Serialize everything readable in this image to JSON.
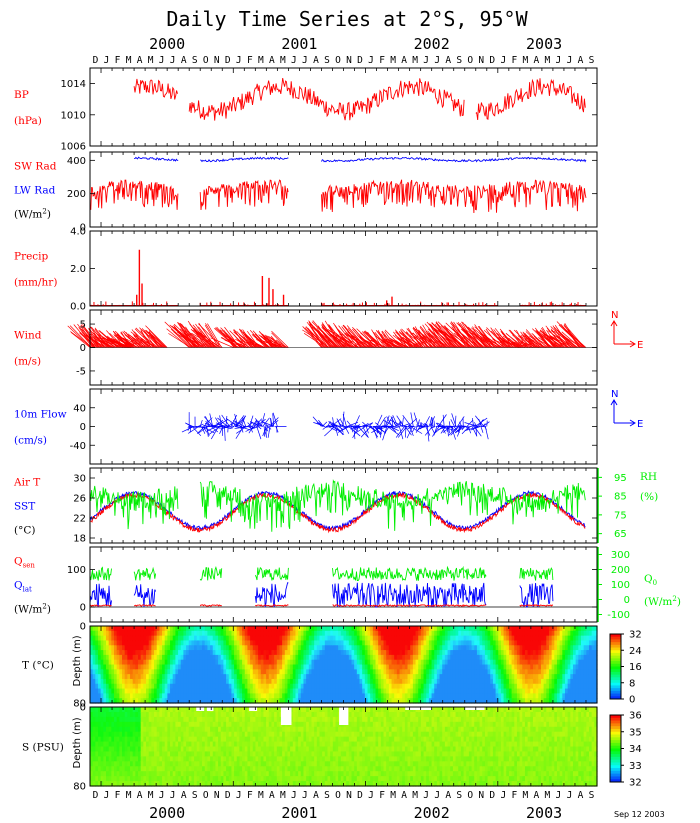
{
  "title": "Daily Time Series at 2°S, 95°W",
  "date_stamp": "Sep 12 2003",
  "month_letters": [
    "D",
    "J",
    "F",
    "M",
    "A",
    "M",
    "J",
    "J",
    "A",
    "S",
    "O",
    "N",
    "D",
    "J",
    "F",
    "M",
    "A",
    "M",
    "J",
    "J",
    "A",
    "S",
    "O",
    "N",
    "D",
    "J",
    "F",
    "M",
    "A",
    "M",
    "J",
    "J",
    "A",
    "S",
    "O",
    "N",
    "D",
    "J",
    "F",
    "M",
    "A",
    "M",
    "J",
    "J",
    "A",
    "S"
  ],
  "years": [
    "2000",
    "2001",
    "2002",
    "2003"
  ],
  "colors": {
    "red": "#ff0000",
    "blue": "#0000ff",
    "green": "#00ee00",
    "black": "#000000"
  },
  "chart_data": [
    {
      "type": "line",
      "id": "bp",
      "labels": [
        {
          "text": "BP",
          "color": "#ff0000"
        },
        {
          "text": "(hPa)",
          "color": "#ff0000"
        }
      ],
      "y_ticks": [
        "1014",
        "1010",
        "1006"
      ],
      "ylim": [
        1006,
        1016
      ],
      "series": [
        {
          "color": "#ff0000",
          "mean": 1012,
          "amp": 1.6,
          "noise": 1.2,
          "segments": [
            [
              "2000-04",
              "2000-07"
            ],
            [
              "2000-09",
              "2002-09"
            ],
            [
              "2002-11",
              "2003-08"
            ]
          ]
        }
      ]
    },
    {
      "type": "line",
      "id": "rad",
      "labels": [
        {
          "text": "SW Rad",
          "color": "#ff0000"
        },
        {
          "text": "LW Rad",
          "color": "#0000ff"
        },
        {
          "text": "(W/m2)",
          "color": "#000000"
        }
      ],
      "y_ticks": [
        "400",
        "200",
        "0"
      ],
      "ylim": [
        0,
        450
      ],
      "series": [
        {
          "name": "SW Rad",
          "color": "#ff0000",
          "mean": 250,
          "amp": 20,
          "noise": 55,
          "segments": [
            [
              "1999-12",
              "2000-07"
            ],
            [
              "2000-10",
              "2001-05"
            ],
            [
              "2001-09",
              "2003-08"
            ]
          ]
        },
        {
          "name": "LW Rad",
          "color": "#0000ff",
          "mean": 405,
          "amp": 8,
          "noise": 6,
          "segments": [
            [
              "2000-04",
              "2000-07"
            ],
            [
              "2000-10",
              "2001-05"
            ],
            [
              "2001-09",
              "2003-08"
            ]
          ]
        }
      ]
    },
    {
      "type": "bar",
      "id": "precip",
      "labels": [
        {
          "text": "Precip",
          "color": "#ff0000"
        },
        {
          "text": "(mm/hr)",
          "color": "#ff0000"
        }
      ],
      "y_ticks": [
        "4.0",
        "2.0",
        "0.0"
      ],
      "ylim": [
        0,
        4
      ],
      "series": [
        {
          "color": "#ff0000",
          "segments": [
            [
              "1999-12",
              "2000-07"
            ],
            [
              "2000-10",
              "2001-05"
            ],
            [
              "2001-09",
              "2002-12"
            ],
            [
              "2003-03",
              "2003-08"
            ]
          ],
          "peaks": [
            [
              2000.29,
              3.0
            ],
            [
              2000.31,
              1.2
            ],
            [
              2000.27,
              0.6
            ],
            [
              2001.22,
              1.6
            ],
            [
              2001.27,
              1.5
            ],
            [
              2001.3,
              0.9
            ],
            [
              2001.38,
              0.6
            ],
            [
              2002.2,
              0.5
            ],
            [
              2002.16,
              0.3
            ]
          ]
        }
      ]
    },
    {
      "type": "vector",
      "id": "wind",
      "labels": [
        {
          "text": "Wind",
          "color": "#ff0000"
        },
        {
          "text": "(m/s)",
          "color": "#ff0000"
        }
      ],
      "y_ticks": [
        "5",
        "0",
        "-5"
      ],
      "ylim": [
        -8,
        8
      ],
      "compass": [
        "N",
        "E"
      ],
      "series": [
        {
          "color": "#ff0000",
          "segments": [
            [
              "1999-12",
              "2000-03"
            ],
            [
              "2000-03",
              "2000-06"
            ],
            [
              "2000-09",
              "2000-11"
            ],
            [
              "2001-01",
              "2001-05"
            ],
            [
              "2001-09",
              "2003-02"
            ],
            [
              "2003-03",
              "2003-08"
            ]
          ]
        }
      ]
    },
    {
      "type": "vector",
      "id": "flow",
      "labels": [
        {
          "text": "10m Flow",
          "color": "#0000ff"
        },
        {
          "text": "(cm/s)",
          "color": "#0000ff"
        }
      ],
      "y_ticks": [
        "40",
        "0",
        "-40"
      ],
      "ylim": [
        -80,
        80
      ],
      "compass": [
        "N",
        "E"
      ],
      "series": [
        {
          "color": "#0000ff",
          "segments": [
            [
              "2000-09",
              "2001-04"
            ],
            [
              "2001-09",
              "2002-11"
            ]
          ]
        }
      ]
    },
    {
      "type": "line",
      "id": "temp",
      "labels": [
        {
          "text": "Air T",
          "color": "#ff0000"
        },
        {
          "text": "SST",
          "color": "#0000ff"
        },
        {
          "text": "(°C)",
          "color": "#000000"
        }
      ],
      "y_ticks": [
        "30",
        "26",
        "22",
        "18"
      ],
      "ylim": [
        17,
        32
      ],
      "right_ticks": [
        "95",
        "85",
        "75",
        "65"
      ],
      "right_labels": [
        {
          "text": "RH",
          "color": "#00ee00"
        },
        {
          "text": "(%)",
          "color": "#00ee00"
        }
      ],
      "series": [
        {
          "name": "Air T",
          "color": "#ff0000"
        },
        {
          "name": "SST",
          "color": "#0000ff"
        },
        {
          "name": "RH",
          "color": "#00ee00",
          "segments": [
            [
              "1999-12",
              "2000-07"
            ],
            [
              "2000-10",
              "2003-08"
            ]
          ]
        }
      ]
    },
    {
      "type": "line",
      "id": "flux",
      "labels": [
        {
          "text": "Qsen",
          "color": "#ff0000"
        },
        {
          "text": "Qlat",
          "color": "#0000ff"
        },
        {
          "text": "(W/m2)",
          "color": "#000000"
        }
      ],
      "y_ticks": [
        "100",
        "0"
      ],
      "ylim": [
        -40,
        160
      ],
      "right_ticks": [
        "300",
        "200",
        "100",
        "0",
        "-100"
      ],
      "right_labels": [
        {
          "text": "Q0",
          "color": "#00ee00"
        },
        {
          "text": "(W/m2)",
          "color": "#00ee00"
        }
      ],
      "series": [
        {
          "name": "Qsen",
          "color": "#ff0000",
          "segments": [
            [
              "1999-12",
              "2000-01"
            ],
            [
              "2000-04",
              "2000-05"
            ],
            [
              "2000-10",
              "2000-11"
            ],
            [
              "2001-03",
              "2001-05"
            ],
            [
              "2001-10",
              "2002-09"
            ],
            [
              "2002-10",
              "2002-11"
            ],
            [
              "2003-03",
              "2003-05"
            ]
          ]
        },
        {
          "name": "Qlat",
          "color": "#0000ff",
          "segments": [
            [
              "1999-12",
              "2000-01"
            ],
            [
              "2000-04",
              "2000-05"
            ],
            [
              "2001-03",
              "2001-05"
            ],
            [
              "2001-10",
              "2002-09"
            ],
            [
              "2002-10",
              "2002-11"
            ],
            [
              "2003-03",
              "2003-05"
            ]
          ]
        },
        {
          "name": "Q0",
          "color": "#00ee00",
          "segments": [
            [
              "1999-12",
              "2000-01"
            ],
            [
              "2000-04",
              "2000-05"
            ],
            [
              "2000-10",
              "2000-11"
            ],
            [
              "2001-03",
              "2001-05"
            ],
            [
              "2001-10",
              "2002-09"
            ],
            [
              "2002-10",
              "2002-11"
            ],
            [
              "2003-03",
              "2003-05"
            ]
          ]
        }
      ]
    },
    {
      "type": "heatmap",
      "id": "depth_t",
      "label": "T (°C)",
      "axis_label": "Depth (m)",
      "y_ticks": [
        "0",
        "80"
      ],
      "colorbar_ticks": [
        "32",
        "24",
        "16",
        "8",
        "0"
      ]
    },
    {
      "type": "heatmap",
      "id": "depth_s",
      "label": "S (PSU)",
      "axis_label": "Depth (m)",
      "y_ticks": [
        "0",
        "80"
      ],
      "colorbar_ticks": [
        "36",
        "35",
        "34",
        "33",
        "32"
      ]
    }
  ]
}
